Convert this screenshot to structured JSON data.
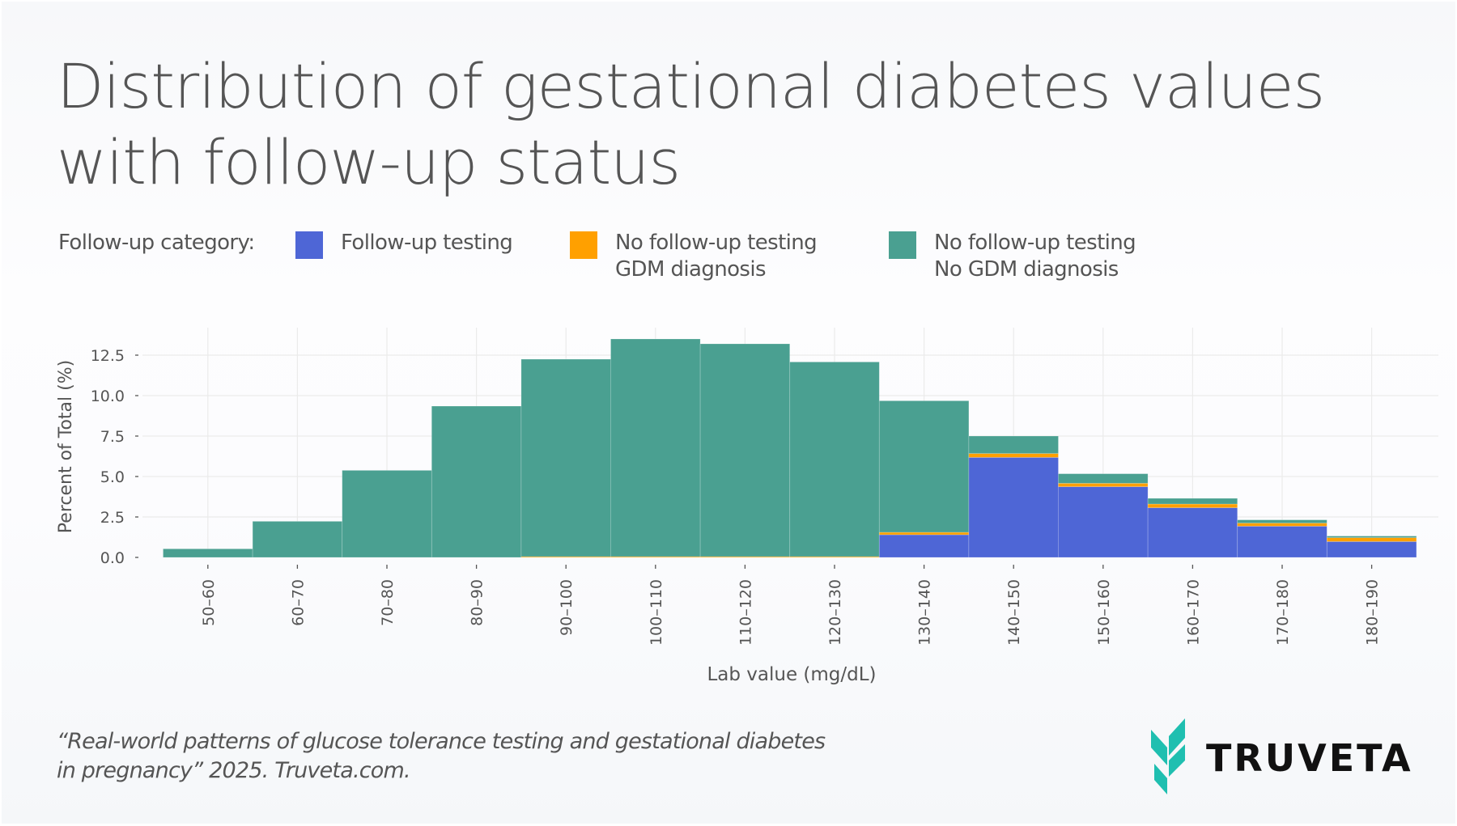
{
  "title": {
    "line1": "Distribution of gestational diabetes values",
    "line2": "with follow-up status"
  },
  "legend": {
    "label": "Follow-up category:",
    "items": [
      {
        "line1": "Follow-up testing",
        "line2": "",
        "color": "#4e66d6"
      },
      {
        "line1": "No follow-up testing",
        "line2": "GDM diagnosis",
        "color": "#ffa000"
      },
      {
        "line1": "No follow-up testing",
        "line2": "No GDM diagnosis",
        "color": "#4aa091"
      }
    ]
  },
  "chart_data": {
    "type": "bar",
    "stacked": true,
    "title": "Distribution of gestational diabetes values with follow-up status",
    "xlabel": "Lab value (mg/dL)",
    "ylabel": "Percent of Total (%)",
    "ylim": [
      0,
      14
    ],
    "yticks": [
      0.0,
      2.5,
      5.0,
      7.5,
      10.0,
      12.5
    ],
    "ytick_labels": [
      "0.0",
      "2.5",
      "5.0",
      "7.5",
      "10.0",
      "12.5"
    ],
    "grid": true,
    "legend_position": "top",
    "categories": [
      "50–60",
      "60–70",
      "70–80",
      "80–90",
      "90–100",
      "100–110",
      "110–120",
      "120–130",
      "130–140",
      "140–150",
      "150–160",
      "160–170",
      "170–180",
      "180–190"
    ],
    "series": [
      {
        "name": "Follow-up testing",
        "color": "#4e66d6",
        "values": [
          0,
          0,
          0,
          0,
          0,
          0,
          0,
          0,
          1.4,
          6.18,
          4.37,
          3.07,
          1.93,
          0.98
        ]
      },
      {
        "name": "No follow-up testing, GDM diagnosis",
        "color": "#ffa000",
        "values": [
          0,
          0,
          0,
          0,
          0.05,
          0.05,
          0.05,
          0.05,
          0.15,
          0.24,
          0.21,
          0.23,
          0.19,
          0.24
        ]
      },
      {
        "name": "No follow-up testing, No GDM diagnosis",
        "color": "#4aa091",
        "values": [
          0.53,
          2.23,
          5.38,
          9.35,
          12.2,
          13.45,
          13.15,
          12.03,
          8.13,
          1.08,
          0.59,
          0.35,
          0.2,
          0.1
        ]
      }
    ]
  },
  "footer": {
    "citation_line1": "“Real-world patterns of glucose tolerance testing and gestational diabetes",
    "citation_line2": "in pregnancy” 2025. Truveta.com.",
    "logo_text": "TRUVETA",
    "logo_color": "#1fbfb0"
  }
}
